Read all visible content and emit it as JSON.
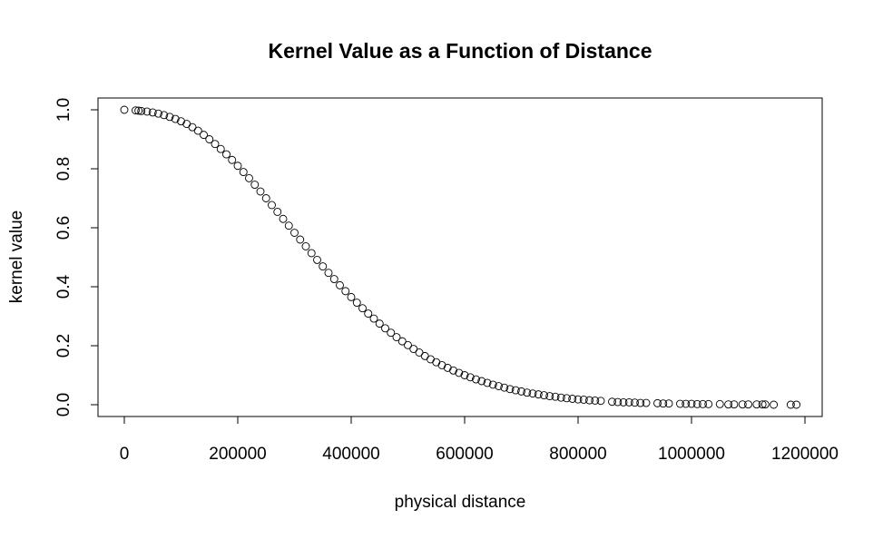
{
  "chart_data": {
    "type": "scatter",
    "title": "Kernel Value as a Function of Distance",
    "xlabel": "physical distance",
    "ylabel": "kernel value",
    "xlim": [
      0,
      1200000
    ],
    "ylim": [
      0,
      1
    ],
    "x_ticks": [
      0,
      200000,
      400000,
      600000,
      800000,
      1000000,
      1200000
    ],
    "x_tick_labels": [
      "0",
      "200000",
      "400000",
      "600000",
      "800000",
      "1000000",
      "1200000"
    ],
    "y_ticks": [
      0,
      0.2,
      0.4,
      0.6,
      0.8,
      1
    ],
    "y_tick_labels": [
      "0.0",
      "0.2",
      "0.4",
      "0.6",
      "0.8",
      "1.0"
    ],
    "grid": false,
    "marker": "open-circle",
    "x": [
      0,
      20000,
      25000,
      30000,
      40000,
      50000,
      60000,
      70000,
      80000,
      90000,
      100000,
      110000,
      120000,
      130000,
      140000,
      150000,
      160000,
      170000,
      180000,
      190000,
      200000,
      210000,
      220000,
      230000,
      240000,
      250000,
      260000,
      270000,
      280000,
      290000,
      300000,
      310000,
      320000,
      330000,
      340000,
      350000,
      360000,
      370000,
      380000,
      390000,
      400000,
      410000,
      420000,
      430000,
      440000,
      450000,
      460000,
      470000,
      480000,
      490000,
      500000,
      510000,
      520000,
      530000,
      540000,
      550000,
      560000,
      570000,
      580000,
      590000,
      600000,
      610000,
      620000,
      630000,
      640000,
      650000,
      660000,
      670000,
      680000,
      690000,
      700000,
      710000,
      720000,
      730000,
      740000,
      750000,
      760000,
      770000,
      780000,
      790000,
      800000,
      810000,
      820000,
      830000,
      840000,
      860000,
      870000,
      880000,
      890000,
      900000,
      910000,
      920000,
      940000,
      950000,
      960000,
      980000,
      990000,
      1000000,
      1010000,
      1020000,
      1030000,
      1050000,
      1065000,
      1075000,
      1090000,
      1100000,
      1115000,
      1125000,
      1130000,
      1145000,
      1175000,
      1185000
    ],
    "y": [
      1.0,
      0.998,
      0.997,
      0.996,
      0.994,
      0.991,
      0.987,
      0.982,
      0.976,
      0.969,
      0.961,
      0.952,
      0.941,
      0.929,
      0.915,
      0.9,
      0.884,
      0.867,
      0.849,
      0.83,
      0.81,
      0.789,
      0.768,
      0.746,
      0.723,
      0.7,
      0.677,
      0.654,
      0.63,
      0.607,
      0.583,
      0.56,
      0.537,
      0.514,
      0.491,
      0.469,
      0.447,
      0.426,
      0.405,
      0.385,
      0.365,
      0.346,
      0.327,
      0.309,
      0.292,
      0.275,
      0.259,
      0.244,
      0.229,
      0.215,
      0.202,
      0.189,
      0.177,
      0.165,
      0.154,
      0.144,
      0.134,
      0.125,
      0.116,
      0.108,
      0.1,
      0.093,
      0.086,
      0.08,
      0.074,
      0.068,
      0.063,
      0.058,
      0.053,
      0.049,
      0.045,
      0.041,
      0.038,
      0.035,
      0.032,
      0.029,
      0.027,
      0.024,
      0.022,
      0.02,
      0.018,
      0.017,
      0.015,
      0.014,
      0.013,
      0.01,
      0.009,
      0.008,
      0.008,
      0.007,
      0.006,
      0.006,
      0.005,
      0.004,
      0.004,
      0.003,
      0.003,
      0.003,
      0.002,
      0.002,
      0.002,
      0.002,
      0.001,
      0.001,
      0.001,
      0.001,
      0.001,
      0.001,
      0.001,
      0.0,
      0.0,
      0.0
    ]
  }
}
